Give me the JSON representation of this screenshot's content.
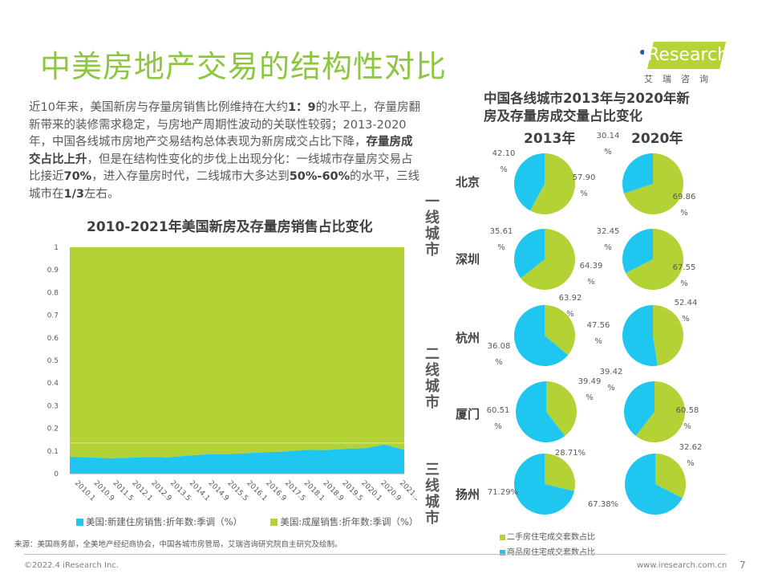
{
  "header": {
    "title": "中美房地产交易的结构性对比",
    "logo_text": "Research",
    "logo_letter": "i",
    "logo_cn": "艾瑞咨询"
  },
  "intro": {
    "parts": [
      {
        "t": "近10年来，美国新房与存量房销售比例维持在大约",
        "b": false
      },
      {
        "t": "1：9",
        "b": true
      },
      {
        "t": "的水平上，存量房翻新带来的装修需求稳定，与房地产周期性波动的关联性较弱；2013-2020年，中国各线城市房地产交易结构总体表现为新房成交占比下降，",
        "b": false
      },
      {
        "t": "存量房成交占比上升",
        "b": true
      },
      {
        "t": "，但是在结构性变化的步伐上出现分化：一线城市存量房交易占比接近",
        "b": false
      },
      {
        "t": "70%",
        "b": true
      },
      {
        "t": "，进入存量房时代，二线城市大多达到",
        "b": false
      },
      {
        "t": "50%-60%",
        "b": true
      },
      {
        "t": "的水平，三线城市在",
        "b": false
      },
      {
        "t": "1/3",
        "b": true
      },
      {
        "t": "左右。",
        "b": false
      }
    ]
  },
  "chart_data": [
    {
      "type": "area",
      "stacked": true,
      "title": "2010-2021年美国新房及存量房销售占比变化",
      "xlabel": "",
      "ylabel": "",
      "ylim": [
        0,
        1
      ],
      "yticks": [
        "0",
        "0.1",
        "0.2",
        "0.3",
        "0.4",
        "0.5",
        "0.6",
        "0.7",
        "0.8",
        "0.9",
        "1"
      ],
      "xticks": [
        "2010.1",
        "2010.9",
        "2011.5",
        "2012.1",
        "2012.9",
        "2013.5",
        "2014.1",
        "2014.9",
        "2015.5",
        "2016.1",
        "2016.9",
        "2017.5",
        "2018.1",
        "2018.9",
        "2019.5",
        "2020.1",
        "2020.9",
        "2021.5"
      ],
      "legend_position": "bottom",
      "x": [
        "2010.1",
        "2010.9",
        "2011.5",
        "2012.1",
        "2012.9",
        "2013.5",
        "2014.1",
        "2014.9",
        "2015.5",
        "2016.1",
        "2016.9",
        "2017.5",
        "2018.1",
        "2018.9",
        "2019.5",
        "2020.1",
        "2020.9",
        "2021.5"
      ],
      "series": [
        {
          "name": "美国:新建住房销售:折年数:季调（%）",
          "color": "#1fc7f0",
          "values": [
            0.075,
            0.072,
            0.068,
            0.07,
            0.074,
            0.072,
            0.08,
            0.085,
            0.086,
            0.09,
            0.095,
            0.098,
            0.105,
            0.104,
            0.11,
            0.112,
            0.128,
            0.106
          ]
        },
        {
          "name": "美国:成屋销售:折年数:季调（%）",
          "color": "#b3d235",
          "values": [
            0.925,
            0.928,
            0.932,
            0.93,
            0.926,
            0.928,
            0.92,
            0.915,
            0.914,
            0.91,
            0.905,
            0.902,
            0.895,
            0.896,
            0.89,
            0.888,
            0.872,
            0.894
          ]
        }
      ]
    },
    {
      "type": "pie",
      "title": "中国各线城市2013年与2020年新房及存量房成交量占比变化",
      "years": [
        "2013年",
        "2020年"
      ],
      "legend": [
        {
          "name": "二手房住宅成交套数占比",
          "color": "#b3d235"
        },
        {
          "name": "商品房住宅成交套数占比",
          "color": "#1fc7f0"
        }
      ],
      "tiers": [
        {
          "name": "一线城市",
          "cities": [
            "北京",
            "深圳"
          ]
        },
        {
          "name": "二线城市",
          "cities": [
            "杭州",
            "厦门"
          ]
        },
        {
          "name": "三线城市",
          "cities": [
            "扬州"
          ]
        }
      ],
      "cities": [
        {
          "name": "北京",
          "y2013": {
            "second_hand": "57.90%",
            "new": "42.10%",
            "sh": 57.9
          },
          "y2020": {
            "second_hand": "69.86%",
            "new": "30.14%",
            "sh": 69.86
          }
        },
        {
          "name": "深圳",
          "y2013": {
            "second_hand": "64.39%",
            "new": "35.61%",
            "sh": 64.39
          },
          "y2020": {
            "second_hand": "67.55%",
            "new": "32.45%",
            "sh": 67.55
          }
        },
        {
          "name": "杭州",
          "y2013": {
            "second_hand": "36.08%",
            "new": "63.92%",
            "sh": 36.08
          },
          "y2020": {
            "second_hand": "47.56%",
            "new": "52.44%",
            "sh": 47.56
          }
        },
        {
          "name": "厦门",
          "y2013": {
            "second_hand": "39.49%",
            "new": "60.51%",
            "sh": 39.49
          },
          "y2020": {
            "second_hand": "60.58%",
            "new": "39.42%",
            "sh": 60.58
          }
        },
        {
          "name": "扬州",
          "y2013": {
            "second_hand": "28.71%",
            "new": "71.29%",
            "sh": 28.71
          },
          "y2020": {
            "second_hand": "32.62%",
            "new": "67.38%",
            "sh": 32.62
          }
        }
      ]
    }
  ],
  "source": "来源：美国商务部，全美地产经纪商协会，中国各城市房管局，艾瑞咨询研究院自主研究及绘制。",
  "footer": {
    "copyright": "©2022.4 iResearch Inc.",
    "website": "www.iresearch.com.cn",
    "page": "7"
  }
}
